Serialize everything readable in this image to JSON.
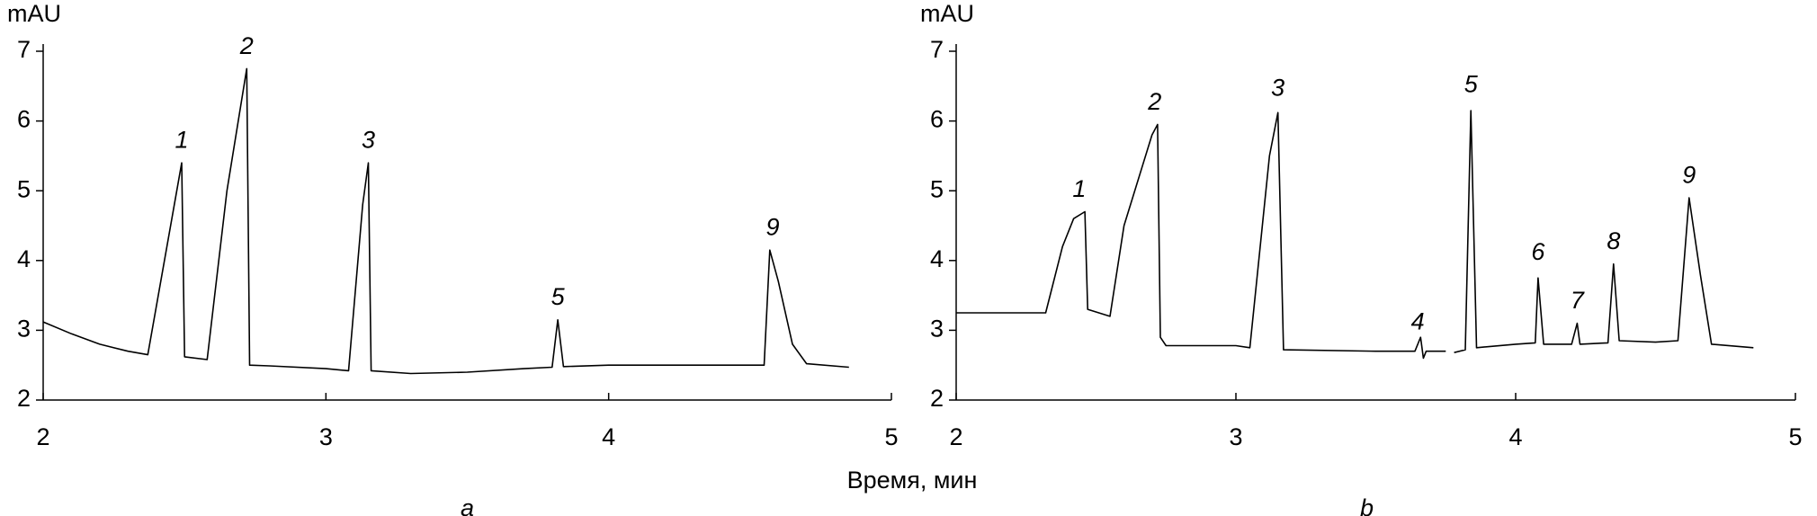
{
  "xlabel": "Время, мин",
  "chart_data": [
    {
      "type": "line",
      "panel": "a",
      "ylabel": "mAU",
      "xlim": [
        2,
        5
      ],
      "xticks": [
        2,
        3,
        4,
        5
      ],
      "ylim": [
        2,
        7
      ],
      "yticks": [
        2,
        3,
        4,
        5,
        6,
        7
      ],
      "x": [
        2.0,
        2.1,
        2.2,
        2.3,
        2.37,
        2.49,
        2.5,
        2.58,
        2.65,
        2.72,
        2.73,
        2.8,
        3.0,
        3.08,
        3.13,
        3.15,
        3.16,
        3.3,
        3.5,
        3.7,
        3.8,
        3.82,
        3.84,
        4.0,
        4.2,
        4.4,
        4.55,
        4.57,
        4.6,
        4.65,
        4.7,
        4.85
      ],
      "series": [
        {
          "color": "#000000",
          "values": [
            3.12,
            2.95,
            2.8,
            2.7,
            2.65,
            5.4,
            2.62,
            2.58,
            5.0,
            6.75,
            2.5,
            2.49,
            2.45,
            2.42,
            4.8,
            5.4,
            2.42,
            2.38,
            2.4,
            2.45,
            2.47,
            3.15,
            2.48,
            2.5,
            2.5,
            2.5,
            2.5,
            4.15,
            3.7,
            2.8,
            2.52,
            2.47
          ]
        }
      ],
      "annotations": [
        {
          "text": "1",
          "x": 2.49,
          "y": 5.55
        },
        {
          "text": "2",
          "x": 2.72,
          "y": 6.9
        },
        {
          "text": "3",
          "x": 3.15,
          "y": 5.55
        },
        {
          "text": "5",
          "x": 3.82,
          "y": 3.3
        },
        {
          "text": "9",
          "x": 4.58,
          "y": 4.3
        }
      ]
    },
    {
      "type": "line",
      "panel": "b",
      "ylabel": "mAU",
      "xlim": [
        2,
        5
      ],
      "xticks": [
        2,
        3,
        4,
        5
      ],
      "ylim": [
        2,
        7
      ],
      "yticks": [
        2,
        3,
        4,
        5,
        6,
        7
      ],
      "x": [
        2.0,
        2.32,
        2.38,
        2.42,
        2.46,
        2.47,
        2.55,
        2.6,
        2.7,
        2.72,
        2.73,
        2.75,
        3.0,
        3.05,
        3.12,
        3.15,
        3.17,
        3.5,
        3.64,
        3.66,
        3.67,
        3.68,
        3.75,
        3.765,
        3.78,
        3.82,
        3.84,
        3.86,
        4.0,
        4.07,
        4.08,
        4.1,
        4.2,
        4.22,
        4.23,
        4.33,
        4.35,
        4.37,
        4.5,
        4.58,
        4.62,
        4.66,
        4.7,
        4.85
      ],
      "series": [
        {
          "color": "#000000",
          "values": [
            3.25,
            3.25,
            4.2,
            4.6,
            4.7,
            3.3,
            3.2,
            4.5,
            5.8,
            5.95,
            2.9,
            2.78,
            2.78,
            2.75,
            5.5,
            6.12,
            2.72,
            2.7,
            2.7,
            2.9,
            2.6,
            2.7,
            2.7,
            null,
            2.68,
            2.72,
            6.15,
            2.75,
            2.8,
            2.82,
            3.75,
            2.8,
            2.8,
            3.1,
            2.8,
            2.82,
            3.95,
            2.85,
            2.83,
            2.85,
            4.9,
            3.8,
            2.8,
            2.75
          ]
        }
      ],
      "annotations": [
        {
          "text": "1",
          "x": 2.44,
          "y": 4.85
        },
        {
          "text": "2",
          "x": 2.71,
          "y": 6.1
        },
        {
          "text": "3",
          "x": 3.15,
          "y": 6.3
        },
        {
          "text": "4",
          "x": 3.65,
          "y": 2.95
        },
        {
          "text": "5",
          "x": 3.84,
          "y": 6.35
        },
        {
          "text": "6",
          "x": 4.08,
          "y": 3.95
        },
        {
          "text": "7",
          "x": 4.22,
          "y": 3.25
        },
        {
          "text": "8",
          "x": 4.35,
          "y": 4.1
        },
        {
          "text": "9",
          "x": 4.62,
          "y": 5.05
        }
      ]
    }
  ]
}
